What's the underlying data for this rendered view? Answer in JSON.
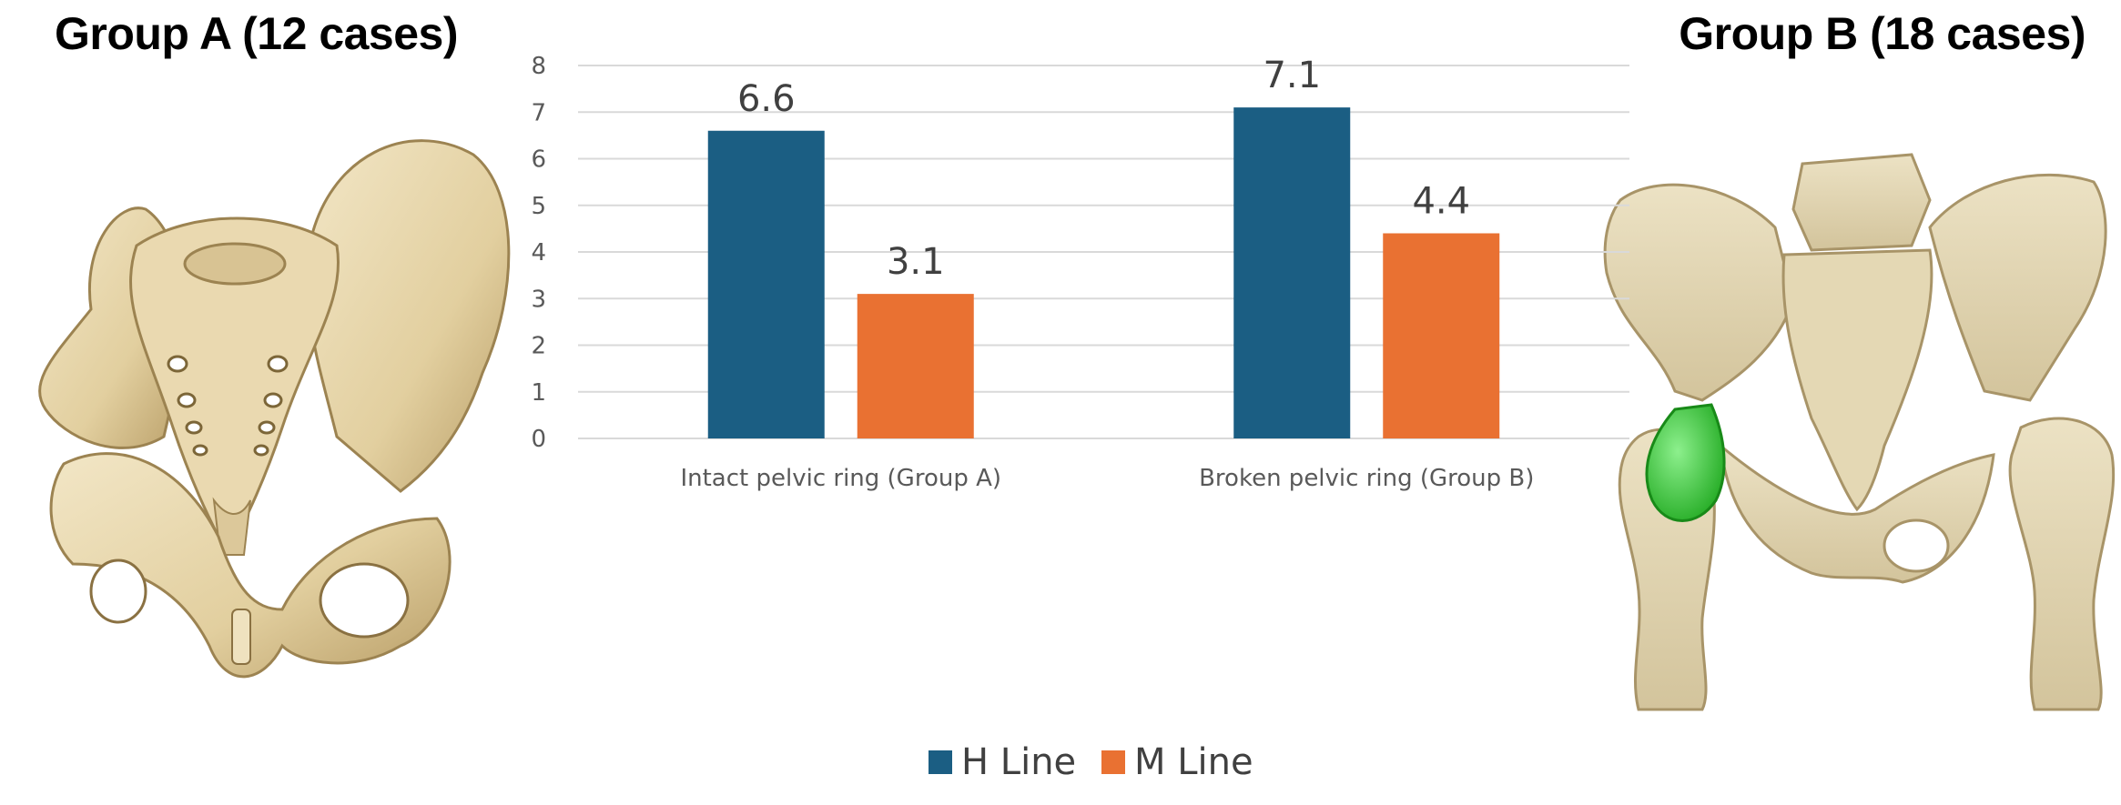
{
  "panels": {
    "left_heading": "Group A (12 cases)",
    "right_heading": "Group B (18 cases)"
  },
  "images": {
    "left": "pelvis-illustration-intact-ring",
    "right": "pelvis-3d-ct-broken-ring-with-green-implant"
  },
  "colors": {
    "h_line": "#1b5e83",
    "m_line": "#e97132",
    "grid": "#d9d9d9",
    "axis_text": "#595959",
    "bone": "#e6d5ae",
    "bone_shadow": "#b59d6a",
    "implant": "#3dd13d"
  },
  "chart_data": {
    "type": "bar",
    "categories": [
      "Intact pelvic ring (Group A)",
      "Broken pelvic ring (Group B)"
    ],
    "series": [
      {
        "name": "H Line",
        "values": [
          6.6,
          7.1
        ]
      },
      {
        "name": "M Line",
        "values": [
          3.1,
          4.4
        ]
      }
    ],
    "data_labels": [
      "6.6",
      "3.1",
      "7.1",
      "4.4"
    ],
    "ylim": [
      0,
      8
    ],
    "yticks": [
      "0",
      "1",
      "2",
      "3",
      "4",
      "5",
      "6",
      "7",
      "8"
    ],
    "grid": true,
    "legend": "bottom"
  }
}
